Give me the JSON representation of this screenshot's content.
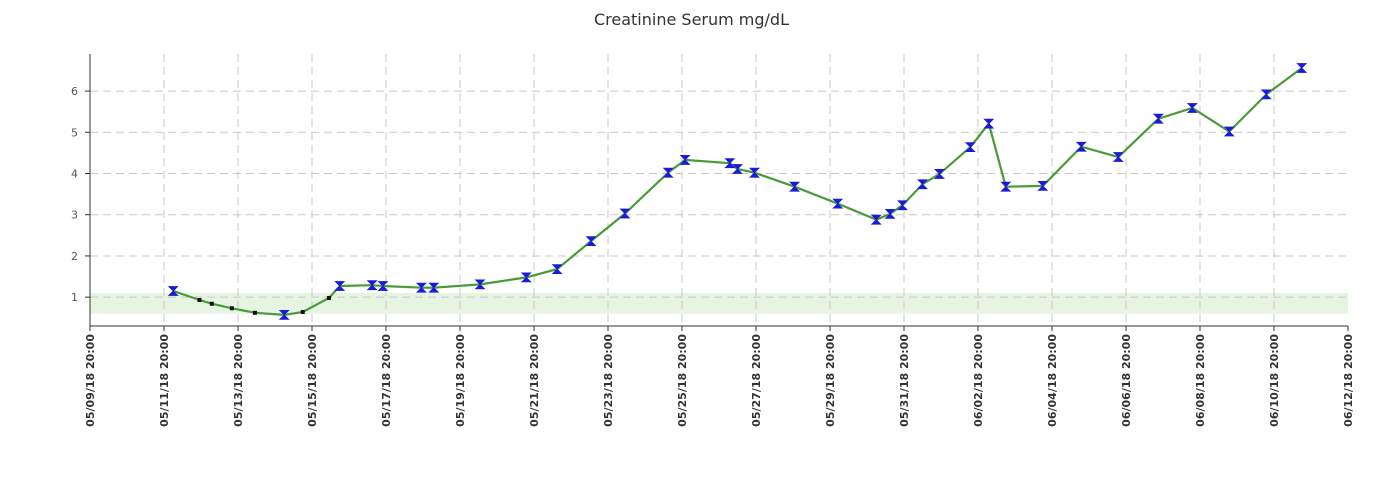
{
  "chart_data": {
    "type": "line",
    "title": "Creatinine Serum mg/dL",
    "xlabel": "",
    "ylabel": "",
    "ylim": [
      0.3,
      6.9
    ],
    "y_ticks": [
      1,
      2,
      3,
      4,
      5,
      6
    ],
    "x_range": [
      "2018-05-09T20:00",
      "2018-06-12T20:00"
    ],
    "x_tick_labels": [
      "05/09/18 20:00",
      "05/11/18 20:00",
      "05/13/18 20:00",
      "05/15/18 20:00",
      "05/17/18 20:00",
      "05/19/18 20:00",
      "05/21/18 20:00",
      "05/23/18 20:00",
      "05/25/18 20:00",
      "05/27/18 20:00",
      "05/29/18 20:00",
      "05/31/18 20:00",
      "06/02/18 20:00",
      "06/04/18 20:00",
      "06/06/18 20:00",
      "06/08/18 20:00",
      "06/10/18 20:00",
      "06/12/18 20:00"
    ],
    "grid": true,
    "normal_range": [
      0.6,
      1.1
    ],
    "colors": {
      "line": "#4a9a3a",
      "marker": "#1a1adc",
      "minor_marker": "#111111",
      "normal_band": "#e6f5e2",
      "grid": "#c8c8c8"
    },
    "series": [
      {
        "points": [
          {
            "x": "2018-05-12T02:00",
            "y": 1.15,
            "marker": "bowtie"
          },
          {
            "x": "2018-05-12T19:00",
            "y": 0.93,
            "marker": "dot"
          },
          {
            "x": "2018-05-13T03:00",
            "y": 0.84,
            "marker": "dot"
          },
          {
            "x": "2018-05-13T16:00",
            "y": 0.73,
            "marker": "dot"
          },
          {
            "x": "2018-05-14T07:00",
            "y": 0.62,
            "marker": "dot"
          },
          {
            "x": "2018-05-15T02:00",
            "y": 0.57,
            "marker": "bowtie"
          },
          {
            "x": "2018-05-15T14:00",
            "y": 0.64,
            "marker": "dot"
          },
          {
            "x": "2018-05-16T07:00",
            "y": 0.98,
            "marker": "dot"
          },
          {
            "x": "2018-05-16T14:00",
            "y": 1.27,
            "marker": "bowtie"
          },
          {
            "x": "2018-05-17T11:00",
            "y": 1.29,
            "marker": "bowtie"
          },
          {
            "x": "2018-05-17T18:00",
            "y": 1.27,
            "marker": "bowtie"
          },
          {
            "x": "2018-05-18T19:00",
            "y": 1.23,
            "marker": "bowtie"
          },
          {
            "x": "2018-05-19T03:00",
            "y": 1.23,
            "marker": "bowtie"
          },
          {
            "x": "2018-05-20T09:00",
            "y": 1.31,
            "marker": "bowtie"
          },
          {
            "x": "2018-05-21T15:00",
            "y": 1.48,
            "marker": "bowtie"
          },
          {
            "x": "2018-05-22T11:00",
            "y": 1.68,
            "marker": "bowtie"
          },
          {
            "x": "2018-05-23T09:00",
            "y": 2.36,
            "marker": "bowtie"
          },
          {
            "x": "2018-05-24T07:00",
            "y": 3.03,
            "marker": "bowtie"
          },
          {
            "x": "2018-05-25T11:00",
            "y": 4.02,
            "marker": "bowtie"
          },
          {
            "x": "2018-05-25T22:00",
            "y": 4.33,
            "marker": "bowtie"
          },
          {
            "x": "2018-05-27T03:00",
            "y": 4.25,
            "marker": "bowtie"
          },
          {
            "x": "2018-05-27T08:00",
            "y": 4.11,
            "marker": "bowtie"
          },
          {
            "x": "2018-05-27T19:00",
            "y": 4.02,
            "marker": "bowtie"
          },
          {
            "x": "2018-05-28T21:00",
            "y": 3.68,
            "marker": "bowtie"
          },
          {
            "x": "2018-05-30T01:00",
            "y": 3.27,
            "marker": "bowtie"
          },
          {
            "x": "2018-05-31T02:00",
            "y": 2.88,
            "marker": "bowtie"
          },
          {
            "x": "2018-05-31T11:00",
            "y": 3.02,
            "marker": "bowtie"
          },
          {
            "x": "2018-05-31T19:00",
            "y": 3.23,
            "marker": "bowtie"
          },
          {
            "x": "2018-06-01T08:00",
            "y": 3.74,
            "marker": "bowtie"
          },
          {
            "x": "2018-06-01T19:00",
            "y": 3.99,
            "marker": "bowtie"
          },
          {
            "x": "2018-06-02T15:00",
            "y": 4.64,
            "marker": "bowtie"
          },
          {
            "x": "2018-06-03T03:00",
            "y": 5.21,
            "marker": "bowtie"
          },
          {
            "x": "2018-06-03T14:00",
            "y": 3.68,
            "marker": "bowtie"
          },
          {
            "x": "2018-06-04T14:00",
            "y": 3.7,
            "marker": "bowtie"
          },
          {
            "x": "2018-06-05T15:00",
            "y": 4.65,
            "marker": "bowtie"
          },
          {
            "x": "2018-06-06T15:00",
            "y": 4.4,
            "marker": "bowtie"
          },
          {
            "x": "2018-06-07T17:00",
            "y": 5.33,
            "marker": "bowtie"
          },
          {
            "x": "2018-06-08T15:00",
            "y": 5.59,
            "marker": "bowtie"
          },
          {
            "x": "2018-06-09T15:00",
            "y": 5.02,
            "marker": "bowtie"
          },
          {
            "x": "2018-06-10T15:00",
            "y": 5.92,
            "marker": "bowtie"
          },
          {
            "x": "2018-06-11T14:00",
            "y": 6.56,
            "marker": "bowtie"
          }
        ]
      }
    ]
  }
}
